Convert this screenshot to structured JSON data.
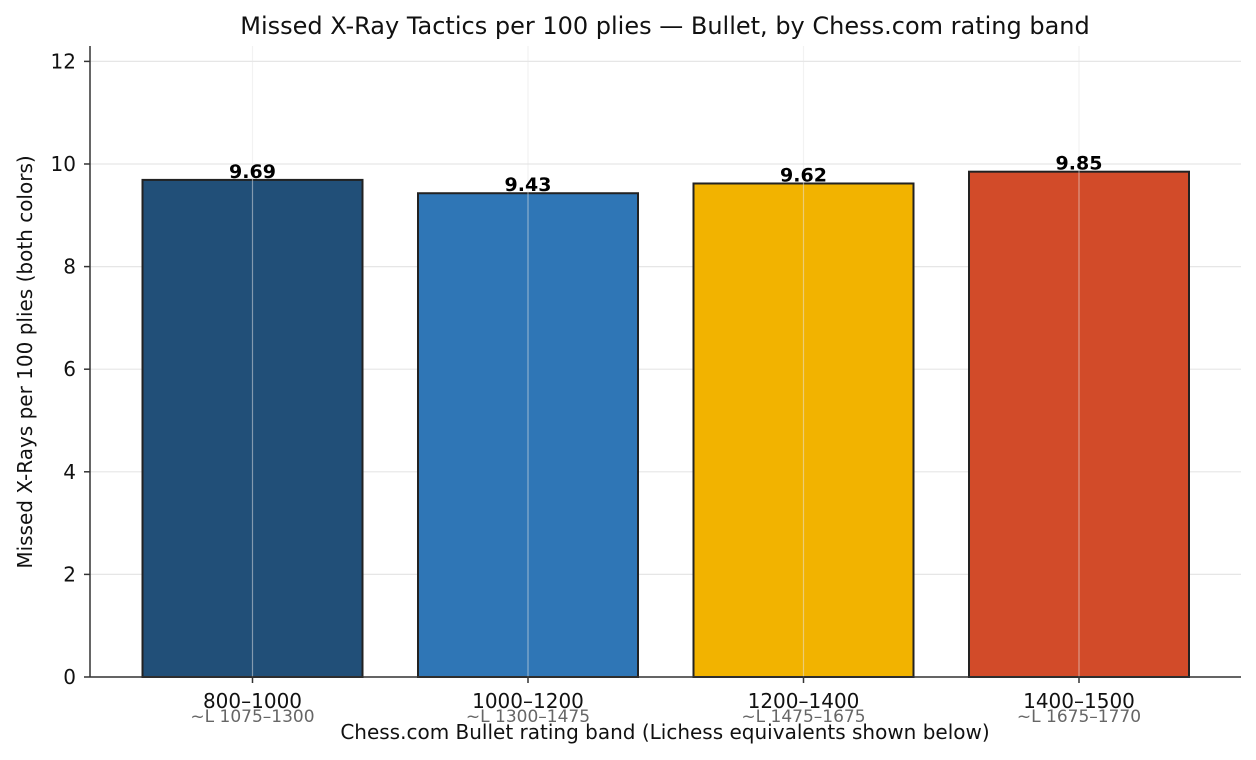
{
  "chart_data": {
    "type": "bar",
    "title": "Missed X-Ray Tactics per 100 plies — Bullet, by Chess.com rating band",
    "xlabel": "Chess.com Bullet rating band  (Lichess equivalents shown below)",
    "ylabel": "Missed X-Rays per 100 plies (both colors)",
    "categories": [
      "800–1000",
      "1000–1200",
      "1200–1400",
      "1400–1500"
    ],
    "sub_labels": [
      "~L 1075–1300",
      "~L 1300–1475",
      "~L 1475–1675",
      "~L 1675–1770"
    ],
    "values": [
      9.69,
      9.43,
      9.62,
      9.85
    ],
    "data_labels": [
      "9.69",
      "9.43",
      "9.62",
      "9.85"
    ],
    "colors": [
      "#214f78",
      "#2f76b6",
      "#f2b300",
      "#d24b29"
    ],
    "ylim": [
      0,
      12.3
    ],
    "yticks": [
      0,
      2,
      4,
      6,
      8,
      10,
      12
    ],
    "grid": true,
    "legend": "none"
  }
}
